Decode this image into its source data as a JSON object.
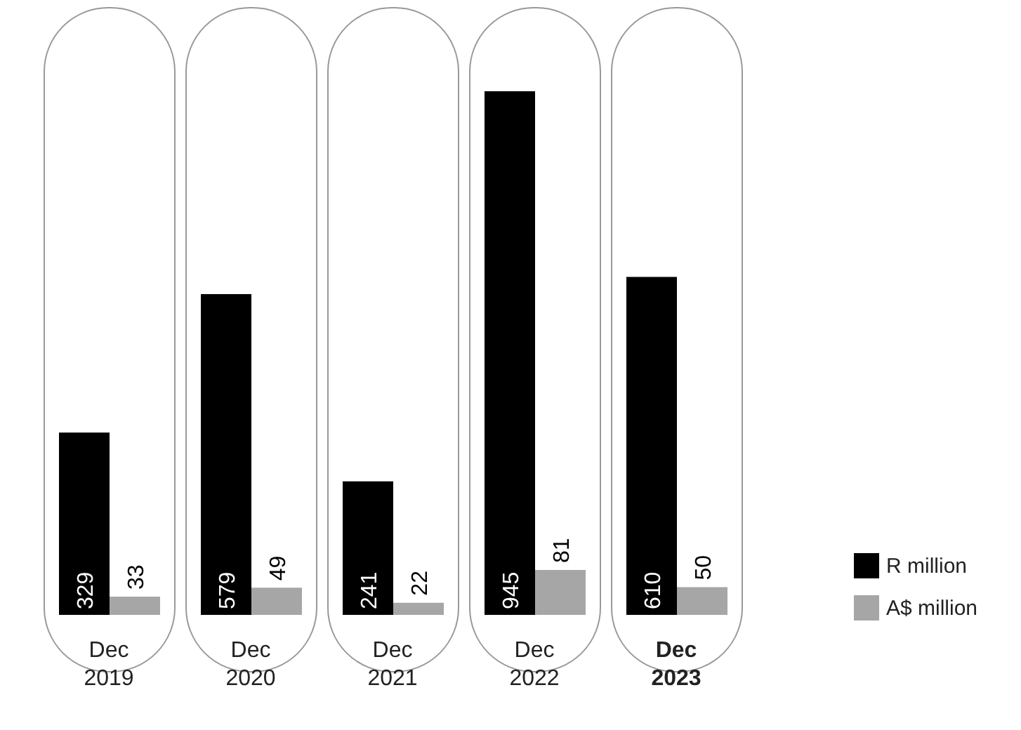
{
  "chart_data": {
    "type": "bar",
    "categories": [
      "Dec 2019",
      "Dec 2020",
      "Dec 2021",
      "Dec 2022",
      "Dec 2023"
    ],
    "series": [
      {
        "name": "R million",
        "color": "#000000",
        "values": [
          329,
          579,
          241,
          945,
          610
        ]
      },
      {
        "name": "A$ million",
        "color": "#a6a6a6",
        "values": [
          33,
          49,
          22,
          81,
          50
        ]
      }
    ],
    "data_labels": true,
    "legend": "right",
    "grid": false
  }
}
